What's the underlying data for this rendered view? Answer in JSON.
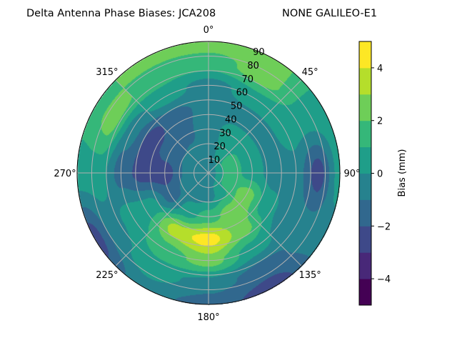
{
  "chart_data": {
    "type": "heatmap",
    "subtype": "polar filled contour",
    "title": "Delta Antenna Phase Biases: JCA208",
    "title_right": "NONE GALILEO-E1",
    "azimuth_direction": "clockwise",
    "azimuth_zero": "top",
    "azimuth_tick_labels": [
      "0°",
      "45°",
      "90°",
      "135°",
      "180°",
      "225°",
      "270°",
      "315°"
    ],
    "radial_tick_labels": [
      "10",
      "20",
      "30",
      "40",
      "50",
      "60",
      "70",
      "80",
      "90"
    ],
    "radial_range": [
      0,
      90
    ],
    "grid": true,
    "colormap": "viridis",
    "colorbar": {
      "label": "Bias (mm)",
      "range": [
        -5,
        5
      ],
      "levels": [
        -5,
        -4,
        -3,
        -2,
        -1,
        0,
        1,
        2,
        3,
        4,
        5
      ],
      "tick_values": [
        4,
        2,
        0,
        -2,
        -4
      ],
      "tick_labels": [
        "4",
        "2",
        "0",
        "−2",
        "−4"
      ],
      "colors": [
        "#440154",
        "#482878",
        "#3e4989",
        "#31688e",
        "#26828e",
        "#1f9e89",
        "#35b779",
        "#6ece58",
        "#b5de2b",
        "#fde725"
      ]
    },
    "grid_azimuth_deg": [
      0,
      30,
      60,
      90,
      120,
      150,
      180,
      210,
      240,
      270,
      300,
      330
    ],
    "grid_zenith_deg": [
      0,
      15,
      30,
      45,
      60,
      75,
      90
    ],
    "values_mm_by_zenith": [
      [
        -0.5,
        -0.5,
        -0.5,
        -0.5,
        -0.5,
        -0.5,
        -0.5,
        -0.5,
        -0.5,
        -0.5,
        -0.5,
        -0.5
      ],
      [
        -0.5,
        0.3,
        1.5,
        1.5,
        1.5,
        0.5,
        -0.5,
        -0.5,
        -0.5,
        -0.8,
        -0.8,
        -0.7
      ],
      [
        -0.5,
        0.5,
        0.5,
        0.5,
        2.5,
        2.5,
        1.5,
        0.5,
        -1.5,
        -2.5,
        -1.5,
        -1.2
      ],
      [
        -0.5,
        -0.5,
        -0.5,
        -0.5,
        0.5,
        2.5,
        4.5,
        3.5,
        0.5,
        -2.5,
        -2.5,
        -1.5
      ],
      [
        -0.5,
        0.5,
        0.5,
        -0.5,
        -0.5,
        0.5,
        2.5,
        1.5,
        0.5,
        -1.5,
        -0.5,
        0.5
      ],
      [
        1.5,
        2.5,
        0.5,
        -2.5,
        -0.5,
        -1.5,
        -0.5,
        0.5,
        -0.5,
        0.5,
        2.5,
        1.5
      ],
      [
        2.5,
        2.5,
        0.5,
        0.5,
        -0.5,
        -2.5,
        -1.5,
        -0.5,
        -2.5,
        0.5,
        1.5,
        2.5
      ]
    ]
  }
}
